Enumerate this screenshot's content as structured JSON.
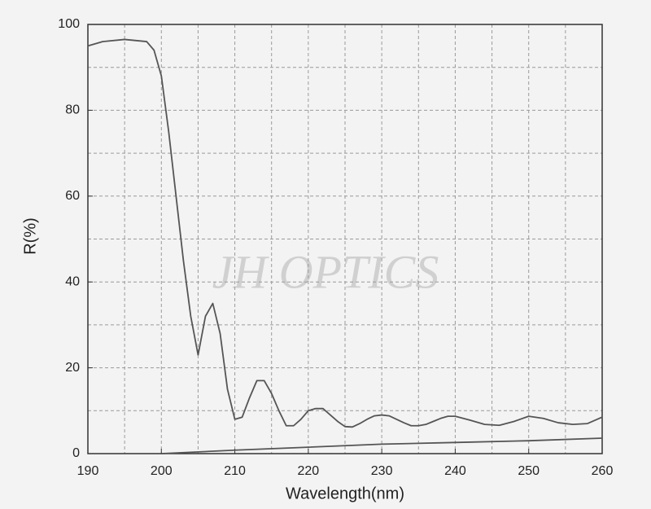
{
  "chart_data": {
    "type": "line",
    "xlabel": "Wavelength(nm)",
    "ylabel": "R(%)",
    "watermark": "JH OPTICS",
    "xlim": [
      190,
      260
    ],
    "xticks": [
      190,
      200,
      210,
      220,
      230,
      240,
      250,
      260
    ],
    "ylim": [
      0,
      100
    ],
    "yticks": [
      0,
      20,
      40,
      60,
      80,
      100
    ],
    "xminorticks": [
      195,
      205,
      215,
      225,
      235,
      245,
      255
    ],
    "yminorticks": [
      10,
      30,
      50,
      70,
      90
    ],
    "grid": true,
    "series": [
      {
        "color": "#555555",
        "x": [
          190,
          192,
          195,
          198,
          199,
          200,
          201,
          202,
          203,
          204,
          205,
          206,
          207,
          208,
          209,
          210,
          211,
          212,
          213,
          214,
          215,
          216,
          217,
          218,
          219,
          220,
          221,
          222,
          223,
          224,
          225,
          226,
          227,
          228,
          229,
          230,
          231,
          232,
          233,
          234,
          235,
          236,
          237,
          238,
          239,
          240,
          242,
          244,
          246,
          248,
          250,
          252,
          254,
          256,
          258,
          260
        ],
        "values": [
          95,
          96,
          96.5,
          96,
          94,
          88,
          75,
          60,
          45,
          32,
          23,
          32,
          35,
          28,
          15,
          8,
          8.5,
          13,
          17,
          17,
          14,
          10,
          6.5,
          6.5,
          8,
          10,
          10.5,
          10.5,
          9,
          7.5,
          6.3,
          6.2,
          7,
          8,
          8.8,
          9,
          8.8,
          8,
          7.2,
          6.5,
          6.5,
          6.8,
          7.5,
          8.2,
          8.7,
          8.7,
          7.8,
          6.8,
          6.6,
          7.5,
          8.7,
          8.2,
          7.2,
          6.8,
          7,
          8.5
        ]
      },
      {
        "color": "#555555",
        "x": [
          200,
          210,
          220,
          230,
          240,
          250,
          260
        ],
        "values": [
          0,
          0.8,
          1.5,
          2.2,
          2.6,
          3,
          3.6
        ]
      }
    ]
  }
}
